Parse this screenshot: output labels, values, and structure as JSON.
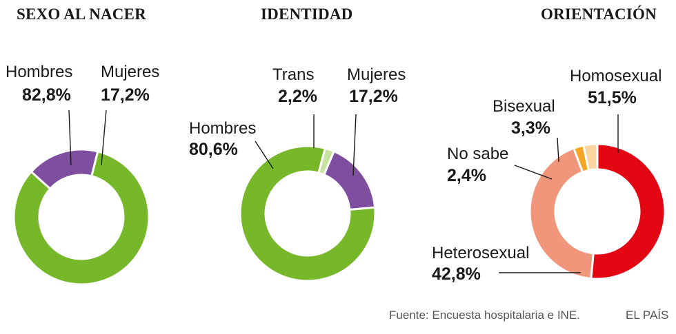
{
  "chart_data": [
    {
      "type": "pie",
      "title": "SEXO AL NACER",
      "slices": [
        {
          "label": "Hombres",
          "value": 82.8,
          "value_text": "82,8%",
          "color": "#76b82a"
        },
        {
          "label": "Mujeres",
          "value": 17.2,
          "value_text": "17,2%",
          "color": "#7e4f9e"
        }
      ]
    },
    {
      "type": "pie",
      "title": "IDENTIDAD",
      "slices": [
        {
          "label": "Trans",
          "value": 2.2,
          "value_text": "2,2%",
          "color": "#c6e3a0"
        },
        {
          "label": "Mujeres",
          "value": 17.2,
          "value_text": "17,2%",
          "color": "#7e4f9e"
        },
        {
          "label": "Hombres",
          "value": 80.6,
          "value_text": "80,6%",
          "color": "#76b82a"
        }
      ]
    },
    {
      "type": "pie",
      "title": "ORIENTACIÓN",
      "slices": [
        {
          "label": "Homosexual",
          "value": 51.5,
          "value_text": "51,5%",
          "color": "#e30613"
        },
        {
          "label": "Heterosexual",
          "value": 42.8,
          "value_text": "42,8%",
          "color": "#f0977b"
        },
        {
          "label": "No sabe",
          "value": 2.4,
          "value_text": "2,4%",
          "color": "#f5a623"
        },
        {
          "label": "Bisexual",
          "value": 3.3,
          "value_text": "3,3%",
          "color": "#fbd6a0"
        }
      ]
    }
  ],
  "footer": {
    "source": "Fuente: Encuesta hospitalaria e INE.",
    "brand": "EL PAÍS"
  }
}
